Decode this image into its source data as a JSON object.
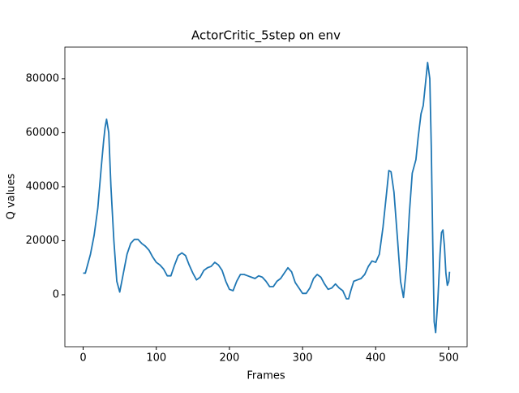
{
  "chart_data": {
    "type": "line",
    "title": "ActorCritic_5step on env",
    "xlabel": "Frames",
    "ylabel": "Q values",
    "color": "#1f77b4",
    "xlim": [
      -25,
      525
    ],
    "ylim": [
      -19250,
      91700
    ],
    "xticks": [
      0,
      100,
      200,
      300,
      400,
      500
    ],
    "yticks": [
      0,
      20000,
      40000,
      60000,
      80000
    ],
    "x": [
      0,
      3,
      10,
      15,
      20,
      25,
      28,
      30,
      32,
      35,
      38,
      42,
      46,
      50,
      55,
      60,
      65,
      70,
      75,
      80,
      85,
      90,
      95,
      100,
      105,
      110,
      115,
      120,
      125,
      130,
      135,
      140,
      145,
      150,
      155,
      160,
      165,
      170,
      175,
      180,
      185,
      190,
      195,
      200,
      205,
      210,
      215,
      220,
      225,
      230,
      235,
      240,
      245,
      250,
      255,
      260,
      265,
      270,
      275,
      280,
      285,
      290,
      295,
      300,
      305,
      310,
      315,
      320,
      325,
      330,
      335,
      340,
      345,
      350,
      355,
      360,
      363,
      366,
      370,
      375,
      380,
      385,
      390,
      395,
      400,
      405,
      410,
      415,
      418,
      421,
      425,
      430,
      434,
      438,
      442,
      446,
      450,
      455,
      458,
      462,
      465,
      468,
      471,
      474,
      476,
      478,
      480,
      482,
      485,
      488,
      490,
      492,
      494,
      496,
      498,
      500,
      501
    ],
    "values": [
      8000,
      8000,
      15000,
      22000,
      32000,
      48000,
      57000,
      62000,
      65000,
      60000,
      40000,
      20000,
      5000,
      1000,
      8000,
      15000,
      19000,
      20500,
      20500,
      19000,
      18000,
      16500,
      14000,
      12000,
      11000,
      9500,
      7000,
      7000,
      11000,
      14500,
      15500,
      14500,
      11000,
      8000,
      5500,
      6500,
      9000,
      10000,
      10500,
      12000,
      11000,
      9000,
      5000,
      2000,
      1500,
      5000,
      7500,
      7500,
      7000,
      6500,
      6000,
      7000,
      6500,
      5000,
      3000,
      3000,
      5000,
      6000,
      8000,
      10000,
      8500,
      4500,
      2500,
      500,
      500,
      2500,
      6000,
      7500,
      6500,
      4000,
      2000,
      2500,
      4000,
      2500,
      1500,
      -1500,
      -1500,
      1500,
      5000,
      5500,
      6000,
      7500,
      10500,
      12500,
      12000,
      15000,
      25000,
      38000,
      46000,
      45500,
      38000,
      20000,
      5000,
      -1000,
      10000,
      30000,
      45000,
      50000,
      58000,
      67000,
      70000,
      78000,
      86000,
      80000,
      55000,
      20000,
      -10000,
      -14000,
      -2000,
      15000,
      23000,
      24000,
      18000,
      8000,
      3500,
      5000,
      8500
    ]
  }
}
